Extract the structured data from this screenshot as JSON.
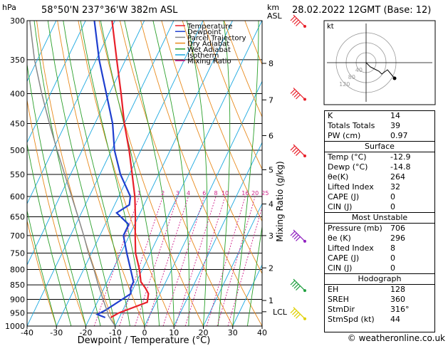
{
  "header": {
    "hpa_label": "hPa",
    "location": "58°50'N  237°36'W  382m  ASL",
    "datetime": "28.02.2022  12GMT  (Base: 12)",
    "km_label": "km",
    "asl_label": "ASL"
  },
  "legend": [
    {
      "label": "Temperature",
      "color": "#e8202a"
    },
    {
      "label": "Dewpoint",
      "color": "#1f3fcf"
    },
    {
      "label": "Parcel Trajectory",
      "color": "#888888"
    },
    {
      "label": "Dry Adiabat",
      "color": "#e88a1c"
    },
    {
      "label": "Wet Adiabat",
      "color": "#2aa02a"
    },
    {
      "label": "Isotherm",
      "color": "#1ba8e0"
    },
    {
      "label": "Mixing Ratio",
      "color": "#d0208a"
    }
  ],
  "mixing_axis_label": "Mixing Ratio (g/kg)",
  "lcl_label": "LCL",
  "kt_label": "kt",
  "chart_data": {
    "type": "line",
    "xlabel": "Dewpoint / Temperature (°C)",
    "xlim": [
      -40,
      40
    ],
    "xticks": [
      -40,
      -30,
      -20,
      -10,
      0,
      10,
      20,
      30,
      40
    ],
    "ylabel": "hPa",
    "ylim": [
      1000,
      300
    ],
    "yscale": "log",
    "pressure_levels": [
      300,
      350,
      400,
      450,
      500,
      550,
      600,
      650,
      700,
      750,
      800,
      850,
      900,
      950,
      1000
    ],
    "km_ticks": [
      {
        "label": "1",
        "p": 904
      },
      {
        "label": "2",
        "p": 795
      },
      {
        "label": "3",
        "p": 700
      },
      {
        "label": "4",
        "p": 618
      },
      {
        "label": "5",
        "p": 540
      },
      {
        "label": "6",
        "p": 472
      },
      {
        "label": "7",
        "p": 410
      },
      {
        "label": "8",
        "p": 355
      }
    ],
    "lcl_p": 945,
    "mixing_ratio_labels": [
      "1",
      "2",
      "3",
      "4",
      "6",
      "8",
      "10",
      "16",
      "20",
      "25"
    ],
    "mixing_ratio_values": [
      1,
      2,
      3,
      4,
      6,
      8,
      10,
      16,
      20,
      25
    ],
    "series": [
      {
        "name": "Temperature",
        "color": "#e8202a",
        "p": [
          967,
          950,
          930,
          910,
          880,
          860,
          840,
          800,
          750,
          700,
          650,
          600,
          550,
          500,
          450,
          400,
          350,
          300
        ],
        "t": [
          -12.9,
          -11,
          -7,
          -3,
          -4,
          -6,
          -8.5,
          -11,
          -15,
          -18,
          -21,
          -24.5,
          -29,
          -34,
          -40,
          -46,
          -53,
          -61
        ]
      },
      {
        "name": "Dewpoint",
        "color": "#1f3fcf",
        "p": [
          967,
          955,
          940,
          920,
          900,
          880,
          860,
          840,
          800,
          750,
          700,
          670,
          640,
          620,
          600,
          550,
          500,
          450,
          400,
          350,
          300
        ],
        "t": [
          -14.8,
          -18,
          -16,
          -14,
          -12,
          -10,
          -11,
          -11,
          -14,
          -18,
          -22,
          -22,
          -28,
          -25,
          -26,
          -33,
          -39,
          -44,
          -51,
          -59,
          -67
        ]
      },
      {
        "name": "Parcel Trajectory",
        "color": "#888888",
        "p": [
          1000,
          960,
          945,
          900,
          850,
          800,
          750,
          700,
          650,
          600,
          550,
          500,
          450,
          400,
          350,
          300
        ],
        "t": [
          -10,
          -14,
          -15,
          -18.5,
          -22.5,
          -26.5,
          -31,
          -35.5,
          -40.5,
          -46,
          -52,
          -58.5,
          -65.5,
          -73,
          -81,
          -89
        ]
      }
    ],
    "wind_barbs": [
      {
        "p": 300,
        "color": "#e8202a"
      },
      {
        "p": 400,
        "color": "#e8202a"
      },
      {
        "p": 500,
        "color": "#e8202a"
      },
      {
        "p": 700,
        "color": "#9020c0"
      },
      {
        "p": 850,
        "color": "#20a040"
      },
      {
        "p": 950,
        "color": "#e0d000"
      }
    ]
  },
  "hodograph": {
    "ring_labels": [
      "40",
      "80",
      "120"
    ]
  },
  "indices": {
    "basic": [
      {
        "k": "K",
        "v": "14"
      },
      {
        "k": "Totals Totals",
        "v": "39"
      },
      {
        "k": "PW (cm)",
        "v": "0.97"
      }
    ],
    "surface_title": "Surface",
    "surface": [
      {
        "k": "Temp (°C)",
        "v": "-12.9"
      },
      {
        "k": "Dewp (°C)",
        "v": "-14.8"
      },
      {
        "k": "θe(K)",
        "v": "264"
      },
      {
        "k": "Lifted Index",
        "v": "32"
      },
      {
        "k": "CAPE (J)",
        "v": "0"
      },
      {
        "k": "CIN (J)",
        "v": "0"
      }
    ],
    "unstable_title": "Most Unstable",
    "unstable": [
      {
        "k": "Pressure (mb)",
        "v": "706"
      },
      {
        "k": "θe (K)",
        "v": "296"
      },
      {
        "k": "Lifted Index",
        "v": "8"
      },
      {
        "k": "CAPE (J)",
        "v": "0"
      },
      {
        "k": "CIN (J)",
        "v": "0"
      }
    ],
    "hodo_title": "Hodograph",
    "hodo": [
      {
        "k": "EH",
        "v": "128"
      },
      {
        "k": "SREH",
        "v": "360"
      },
      {
        "k": "StmDir",
        "v": "316°"
      },
      {
        "k": "StmSpd (kt)",
        "v": "44"
      }
    ]
  },
  "footer": "© weatheronline.co.uk"
}
